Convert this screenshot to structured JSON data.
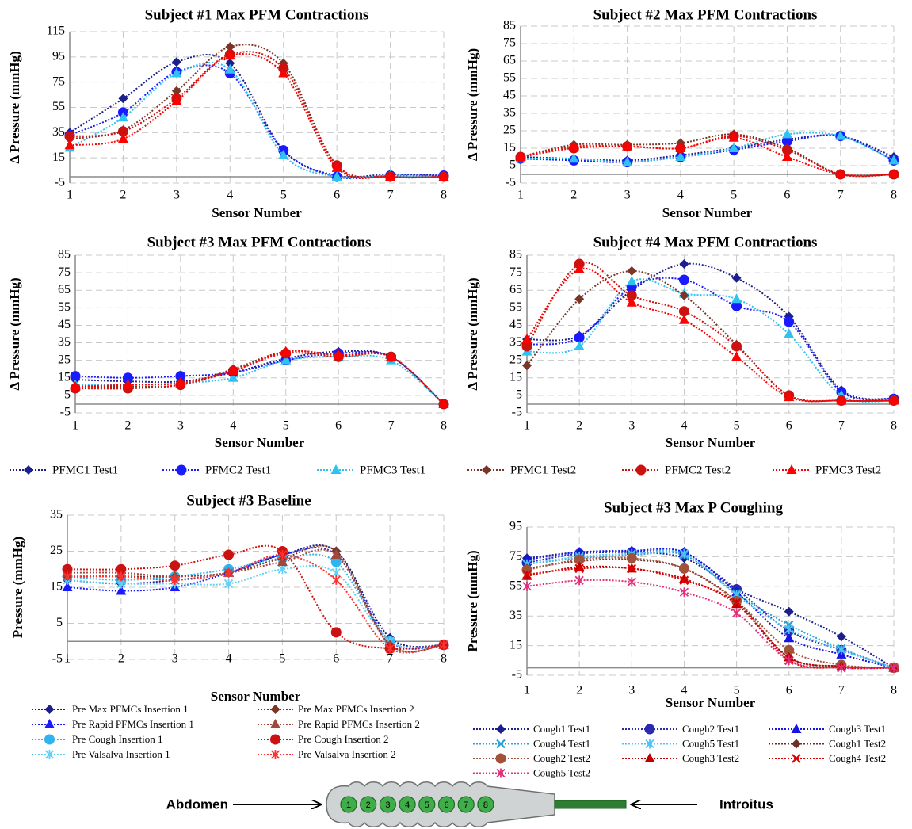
{
  "chart_data": [
    {
      "type": "line",
      "title": "Subject #1 Max PFM Contractions",
      "x_label": "Sensor Number",
      "y_label": "Δ Pressure (mmHg)",
      "x": [
        1,
        2,
        3,
        4,
        5,
        6,
        7,
        8
      ],
      "xlim": [
        1,
        8
      ],
      "xticks": [
        1,
        2,
        3,
        4,
        5,
        6,
        7,
        8
      ],
      "ylim": [
        -5,
        115
      ],
      "yticks": [
        -5,
        15,
        35,
        55,
        75,
        95,
        115
      ],
      "grid": true,
      "series": [
        {
          "name": "PFMC1 Test1",
          "color": "#1c1f8a",
          "marker": "diamond",
          "values": [
            35,
            62,
            91,
            90,
            21,
            1,
            2,
            1
          ]
        },
        {
          "name": "PFMC2 Test1",
          "color": "#1a1aff",
          "marker": "circle",
          "values": [
            33,
            51,
            83,
            82,
            21,
            0,
            1,
            1
          ]
        },
        {
          "name": "PFMC3 Test1",
          "color": "#2fc2f0",
          "marker": "triangle",
          "values": [
            23,
            47,
            82,
            85,
            17,
            0,
            1,
            0
          ]
        },
        {
          "name": "PFMC1 Test2",
          "color": "#7a3527",
          "marker": "diamond",
          "values": [
            30,
            37,
            68,
            103,
            90,
            9,
            0,
            0
          ]
        },
        {
          "name": "PFMC2 Test2",
          "color": "#cc1111",
          "marker": "circle",
          "values": [
            32,
            36,
            62,
            97,
            86,
            9,
            0,
            0
          ]
        },
        {
          "name": "PFMC3 Test2",
          "color": "#ff0000",
          "marker": "triangle",
          "values": [
            25,
            30,
            60,
            96,
            82,
            7,
            0,
            0
          ]
        }
      ]
    },
    {
      "type": "line",
      "title": "Subject #2 Max PFM Contractions",
      "x_label": "Sensor Number",
      "y_label": "Δ Pressure (mmHg)",
      "x": [
        1,
        2,
        3,
        4,
        5,
        6,
        7,
        8
      ],
      "xlim": [
        1,
        8
      ],
      "xticks": [
        1,
        2,
        3,
        4,
        5,
        6,
        7,
        8
      ],
      "ylim": [
        -5,
        85
      ],
      "yticks": [
        -5,
        5,
        15,
        25,
        35,
        45,
        55,
        65,
        75,
        85
      ],
      "grid": true,
      "series": [
        {
          "name": "PFMC1 Test1",
          "color": "#1c1f8a",
          "marker": "diamond",
          "values": [
            10,
            9,
            8,
            11,
            15,
            20,
            22,
            10
          ]
        },
        {
          "name": "PFMC2 Test1",
          "color": "#1a1aff",
          "marker": "circle",
          "values": [
            9,
            8,
            7,
            10,
            14,
            19,
            22,
            8
          ]
        },
        {
          "name": "PFMC3 Test1",
          "color": "#2fc2f0",
          "marker": "triangle",
          "values": [
            9,
            9,
            7,
            10,
            15,
            23,
            22,
            8
          ]
        },
        {
          "name": "PFMC1 Test2",
          "color": "#7a3527",
          "marker": "diamond",
          "values": [
            10,
            17,
            17,
            18,
            23,
            15,
            0,
            0
          ]
        },
        {
          "name": "PFMC2 Test2",
          "color": "#cc1111",
          "marker": "circle",
          "values": [
            10,
            15,
            16,
            15,
            22,
            14,
            0,
            0
          ]
        },
        {
          "name": "PFMC3 Test2",
          "color": "#ff0000",
          "marker": "triangle",
          "values": [
            10,
            16,
            16,
            15,
            21,
            10,
            0,
            0
          ]
        }
      ]
    },
    {
      "type": "line",
      "title": "Subject #3 Max PFM Contractions",
      "x_label": "Sensor Number",
      "y_label": "Δ Pressure (mmHg)",
      "x": [
        1,
        2,
        3,
        4,
        5,
        6,
        7,
        8
      ],
      "xlim": [
        1,
        8
      ],
      "xticks": [
        1,
        2,
        3,
        4,
        5,
        6,
        7,
        8
      ],
      "ylim": [
        -5,
        85
      ],
      "yticks": [
        -5,
        5,
        15,
        25,
        35,
        45,
        55,
        65,
        75,
        85
      ],
      "grid": true,
      "series": [
        {
          "name": "PFMC1 Test1",
          "color": "#1c1f8a",
          "marker": "diamond",
          "values": [
            14,
            13,
            13,
            18,
            26,
            30,
            27,
            0
          ]
        },
        {
          "name": "PFMC2 Test1",
          "color": "#1a1aff",
          "marker": "circle",
          "values": [
            16,
            15,
            16,
            18,
            25,
            29,
            27,
            0
          ]
        },
        {
          "name": "PFMC3 Test1",
          "color": "#2fc2f0",
          "marker": "triangle",
          "values": [
            11,
            11,
            12,
            15,
            25,
            27,
            25,
            0
          ]
        },
        {
          "name": "PFMC1 Test2",
          "color": "#7a3527",
          "marker": "diamond",
          "values": [
            10,
            10,
            11,
            20,
            30,
            28,
            27,
            0
          ]
        },
        {
          "name": "PFMC2 Test2",
          "color": "#cc1111",
          "marker": "circle",
          "values": [
            9,
            9,
            11,
            19,
            29,
            27,
            27,
            0
          ]
        },
        {
          "name": "PFMC3 Test2",
          "color": "#ff0000",
          "marker": "triangle",
          "values": [
            10,
            11,
            12,
            19,
            30,
            28,
            27,
            0
          ]
        }
      ]
    },
    {
      "type": "line",
      "title": "Subject #4 Max PFM Contractions",
      "x_label": "Sensor Number",
      "y_label": "Δ Pressure (mmHg)",
      "x": [
        1,
        2,
        3,
        4,
        5,
        6,
        7,
        8
      ],
      "xlim": [
        1,
        8
      ],
      "xticks": [
        1,
        2,
        3,
        4,
        5,
        6,
        7,
        8
      ],
      "ylim": [
        -5,
        85
      ],
      "yticks": [
        -5,
        5,
        15,
        25,
        35,
        45,
        55,
        65,
        75,
        85
      ],
      "grid": true,
      "series": [
        {
          "name": "PFMC1 Test1",
          "color": "#1c1f8a",
          "marker": "diamond",
          "values": [
            37,
            39,
            65,
            80,
            72,
            50,
            8,
            3
          ]
        },
        {
          "name": "PFMC2 Test1",
          "color": "#1a1aff",
          "marker": "circle",
          "values": [
            34,
            38,
            67,
            71,
            56,
            47,
            7,
            3
          ]
        },
        {
          "name": "PFMC3 Test1",
          "color": "#2fc2f0",
          "marker": "triangle",
          "values": [
            30,
            33,
            70,
            63,
            60,
            40,
            5,
            2
          ]
        },
        {
          "name": "PFMC1 Test2",
          "color": "#7a3527",
          "marker": "diamond",
          "values": [
            22,
            60,
            76,
            62,
            34,
            5,
            2,
            2
          ]
        },
        {
          "name": "PFMC2 Test2",
          "color": "#cc1111",
          "marker": "circle",
          "values": [
            33,
            80,
            62,
            53,
            33,
            5,
            2,
            2
          ]
        },
        {
          "name": "PFMC3 Test2",
          "color": "#ff0000",
          "marker": "triangle",
          "values": [
            37,
            77,
            58,
            48,
            27,
            4,
            2,
            2
          ]
        }
      ]
    },
    {
      "type": "line",
      "title": "Subject #3 Baseline",
      "x_label": "Sensor Number",
      "y_label": "Pressure (mmHg)",
      "x": [
        1,
        2,
        3,
        4,
        5,
        6,
        7,
        8
      ],
      "xlim": [
        1,
        8
      ],
      "xticks": [
        1,
        2,
        3,
        4,
        5,
        6,
        7,
        8
      ],
      "ylim": [
        -5,
        35
      ],
      "yticks": [
        -5,
        5,
        15,
        25,
        35
      ],
      "grid": true,
      "series": [
        {
          "name": "Pre Max PFMCs Insertion 1",
          "color": "#1c1f8a",
          "marker": "diamond",
          "values": [
            17,
            16,
            17,
            19,
            24,
            25,
            1,
            -1
          ]
        },
        {
          "name": "Pre Rapid PFMCs Insertion 1",
          "color": "#1a1aff",
          "marker": "triangle",
          "values": [
            15,
            14,
            15,
            19,
            24,
            24,
            0,
            -1
          ]
        },
        {
          "name": "Pre Cough Insertion 1",
          "color": "#2fb4f0",
          "marker": "circle",
          "values": [
            18,
            17,
            18,
            20,
            23,
            22,
            0,
            -1
          ]
        },
        {
          "name": "Pre Valsalva Insertion 1",
          "color": "#5fd0f5",
          "marker": "star",
          "values": [
            17,
            16,
            16,
            16,
            20,
            19,
            0,
            -1
          ]
        },
        {
          "name": "Pre Max PFMCs Insertion 2",
          "color": "#7a3527",
          "marker": "diamond",
          "values": [
            18,
            18,
            18,
            19,
            23,
            25,
            -1,
            -1
          ]
        },
        {
          "name": "Pre Rapid PFMCs Insertion 2",
          "color": "#a0483a",
          "marker": "triangle",
          "values": [
            19,
            19,
            18,
            19,
            22,
            24,
            -1,
            -1
          ]
        },
        {
          "name": "Pre Cough Insertion 2",
          "color": "#cc1111",
          "marker": "circle",
          "values": [
            20,
            20,
            21,
            24,
            25,
            2.5,
            -2,
            -1
          ]
        },
        {
          "name": "Pre Valsalva Insertion 2",
          "color": "#ff3030",
          "marker": "star",
          "values": [
            18,
            18,
            17,
            19,
            24,
            17,
            -2,
            -1
          ]
        }
      ]
    },
    {
      "type": "line",
      "title": "Subject #3 Max P Coughing",
      "x_label": "Sensor Number",
      "y_label": "Pressure (mmHg)",
      "x": [
        1,
        2,
        3,
        4,
        5,
        6,
        7,
        8
      ],
      "xlim": [
        1,
        8
      ],
      "xticks": [
        1,
        2,
        3,
        4,
        5,
        6,
        7,
        8
      ],
      "ylim": [
        -5,
        95
      ],
      "yticks": [
        -5,
        15,
        35,
        55,
        75,
        95
      ],
      "grid": true,
      "series": [
        {
          "name": "Cough1 Test1",
          "color": "#1c1f8a",
          "marker": "diamond",
          "values": [
            74,
            78,
            78,
            74,
            53,
            38,
            21,
            0
          ]
        },
        {
          "name": "Cough2 Test1",
          "color": "#2a2ab0",
          "marker": "circle",
          "values": [
            71,
            77,
            78,
            77,
            53,
            25,
            12,
            0
          ]
        },
        {
          "name": "Cough3 Test1",
          "color": "#1414e6",
          "marker": "triangle",
          "values": [
            73,
            78,
            79,
            78,
            51,
            20,
            9,
            0
          ]
        },
        {
          "name": "Cough4 Test1",
          "color": "#29a3d6",
          "marker": "x",
          "values": [
            70,
            74,
            76,
            76,
            50,
            29,
            13,
            0
          ]
        },
        {
          "name": "Cough5 Test1",
          "color": "#4fc3f7",
          "marker": "star",
          "values": [
            70,
            75,
            77,
            77,
            49,
            26,
            12,
            0
          ]
        },
        {
          "name": "Cough1 Test2",
          "color": "#6e2e24",
          "marker": "diamond",
          "values": [
            67,
            72,
            73,
            67,
            45,
            7,
            1,
            0
          ]
        },
        {
          "name": "Cough2 Test2",
          "color": "#a0523a",
          "marker": "circle",
          "values": [
            66,
            73,
            74,
            67,
            45,
            12,
            2,
            0
          ]
        },
        {
          "name": "Cough3 Test2",
          "color": "#c00000",
          "marker": "triangle",
          "values": [
            62,
            68,
            67,
            60,
            43,
            7,
            1,
            0
          ]
        },
        {
          "name": "Cough4 Test2",
          "color": "#e00000",
          "marker": "x",
          "values": [
            63,
            67,
            67,
            59,
            44,
            5,
            0,
            0
          ]
        },
        {
          "name": "Cough5 Test2",
          "color": "#e0307a",
          "marker": "star",
          "values": [
            55,
            59,
            58,
            51,
            37,
            5,
            0,
            0
          ]
        }
      ]
    }
  ],
  "probe": {
    "left_label": "Abdomen",
    "right_label": "Introitus",
    "sensors": [
      "1",
      "2",
      "3",
      "4",
      "5",
      "6",
      "7",
      "8"
    ]
  }
}
